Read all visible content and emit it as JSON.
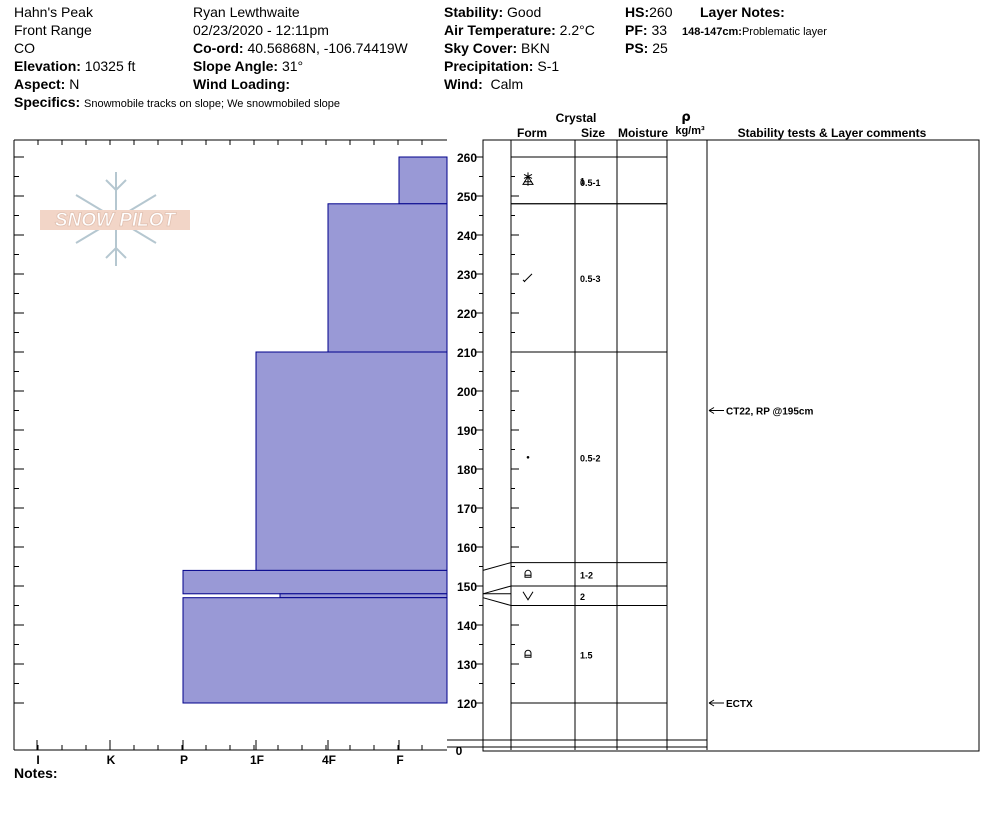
{
  "site": {
    "location": "Hahn's Peak",
    "range": "Front Range",
    "state": "CO",
    "elevation_label": "Elevation:",
    "elevation": "10325 ft",
    "aspect_label": "Aspect:",
    "aspect": "N",
    "specifics_label": "Specifics:",
    "specifics": "Snowmobile tracks on slope; We snowmobiled slope"
  },
  "observer": {
    "name": "Ryan Lewthwaite",
    "datetime": "02/23/2020 - 12:11pm",
    "coord_label": "Co-ord:",
    "coord": "40.56868N, -106.74419W",
    "slope_label": "Slope Angle:",
    "slope": "31°",
    "wind_loading_label": "Wind Loading:",
    "wind_loading": ""
  },
  "conditions": {
    "stability_label": "Stability:",
    "stability": "Good",
    "air_temp_label": "Air Temperature:",
    "air_temp": "2.2°C",
    "sky_label": "Sky Cover:",
    "sky": "BKN",
    "precip_label": "Precipitation:",
    "precip": "S-1",
    "wind_label": "Wind:",
    "wind": "Calm"
  },
  "snowpack": {
    "hs_label": "HS:",
    "hs": "260",
    "pf_label": "PF:",
    "pf": "33",
    "ps_label": "PS:",
    "ps": "25"
  },
  "layer_notes": {
    "title": "Layer Notes:",
    "items": [
      {
        "range": "148-147cm:",
        "text": "Problematic layer"
      }
    ]
  },
  "column_headers": {
    "crystal": "Crystal",
    "form": "Form",
    "size": "Size",
    "moisture": "Moisture",
    "rho": "ρ",
    "density_unit": "kg/m³",
    "stability_tests": "Stability tests & Layer comments"
  },
  "logo_text": "SNOW PILOT",
  "notes_label": "Notes:",
  "chart_data": {
    "type": "bar",
    "orientation": "horizontal",
    "x_categories": [
      "I",
      "K",
      "P",
      "1F",
      "4F",
      "F"
    ],
    "y_ticks": [
      120,
      130,
      140,
      150,
      160,
      170,
      180,
      190,
      200,
      210,
      220,
      230,
      240,
      250,
      260
    ],
    "y_zero_label": "0",
    "ylim": [
      120,
      260
    ],
    "hardness_layers": [
      {
        "top": 260,
        "bottom": 248,
        "hardness": "F"
      },
      {
        "top": 248,
        "bottom": 210,
        "hardness": "4F"
      },
      {
        "top": 210,
        "bottom": 154,
        "hardness": "1F"
      },
      {
        "top": 154,
        "bottom": 148,
        "hardness": "P"
      },
      {
        "top": 148,
        "bottom": 147,
        "hardness": "1F-"
      },
      {
        "top": 147,
        "bottom": 120,
        "hardness": "P"
      }
    ],
    "crystal_layers": [
      {
        "top": 260,
        "bottom": 248,
        "form": "decomposing-precip",
        "size": "1"
      },
      {
        "top": 248,
        "bottom": 248,
        "form": "precip",
        "size": "0.5-1"
      },
      {
        "top": 248,
        "bottom": 210,
        "form": "decomposing-fragmented",
        "size": "0.5-3"
      },
      {
        "top": 210,
        "bottom": 156,
        "form": "rounded-grains",
        "size": "0.5-2"
      },
      {
        "top": 156,
        "bottom": 150,
        "form": "faceted-rounded",
        "size": "1-2"
      },
      {
        "top": 150,
        "bottom": 145,
        "form": "depth-hoar",
        "size": "2"
      },
      {
        "top": 145,
        "bottom": 120,
        "form": "faceted-rounded",
        "size": "1.5"
      }
    ],
    "stability_comments": [
      {
        "depth": 195,
        "text": "CT22, RP @195cm"
      },
      {
        "depth": 120,
        "text": "ECTX"
      }
    ],
    "bar_color": "#9999d6",
    "bar_stroke": "#00008b"
  }
}
